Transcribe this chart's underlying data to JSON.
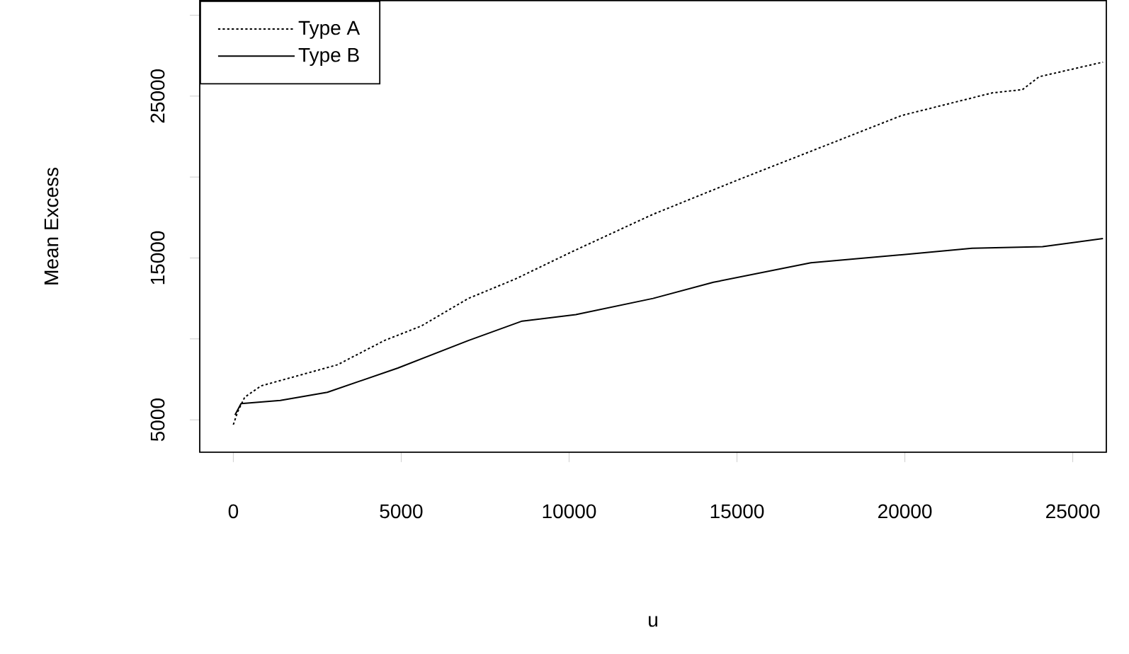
{
  "chart_data": {
    "type": "line",
    "xlabel": "u",
    "ylabel": "Mean Excess",
    "xlim": [
      -1000,
      26000
    ],
    "ylim": [
      3000,
      30900
    ],
    "xticks": [
      0,
      5000,
      10000,
      15000,
      20000,
      25000
    ],
    "yticks": [
      5000,
      {
        "value": 10000,
        "label": null
      },
      15000,
      {
        "value": 20000,
        "label": null
      },
      25000,
      {
        "value": 30000,
        "label": null
      }
    ],
    "grid": false,
    "legend": "top left",
    "marker": "none",
    "series": [
      {
        "name": "Type A",
        "color": "#000000",
        "line_style": "dotted",
        "x": [
          0,
          130,
          340,
          830,
          3100,
          4500,
          5600,
          7000,
          8400,
          10100,
          12500,
          15000,
          17700,
          19900,
          22600,
          23500,
          24000,
          25900
        ],
        "values": [
          4700,
          5500,
          6400,
          7100,
          8400,
          9900,
          10800,
          12500,
          13700,
          15400,
          17700,
          19800,
          22000,
          23800,
          25200,
          25400,
          26200,
          27100
        ]
      },
      {
        "name": "Type B",
        "color": "#000000",
        "line_style": "solid",
        "x": [
          50,
          230,
          1400,
          2800,
          4900,
          7000,
          8600,
          10200,
          12500,
          14300,
          17200,
          19900,
          22000,
          24100,
          25900
        ],
        "values": [
          5300,
          6000,
          6200,
          6700,
          8200,
          9900,
          11100,
          11500,
          12500,
          13500,
          14700,
          15200,
          15600,
          15700,
          16200
        ]
      }
    ]
  }
}
